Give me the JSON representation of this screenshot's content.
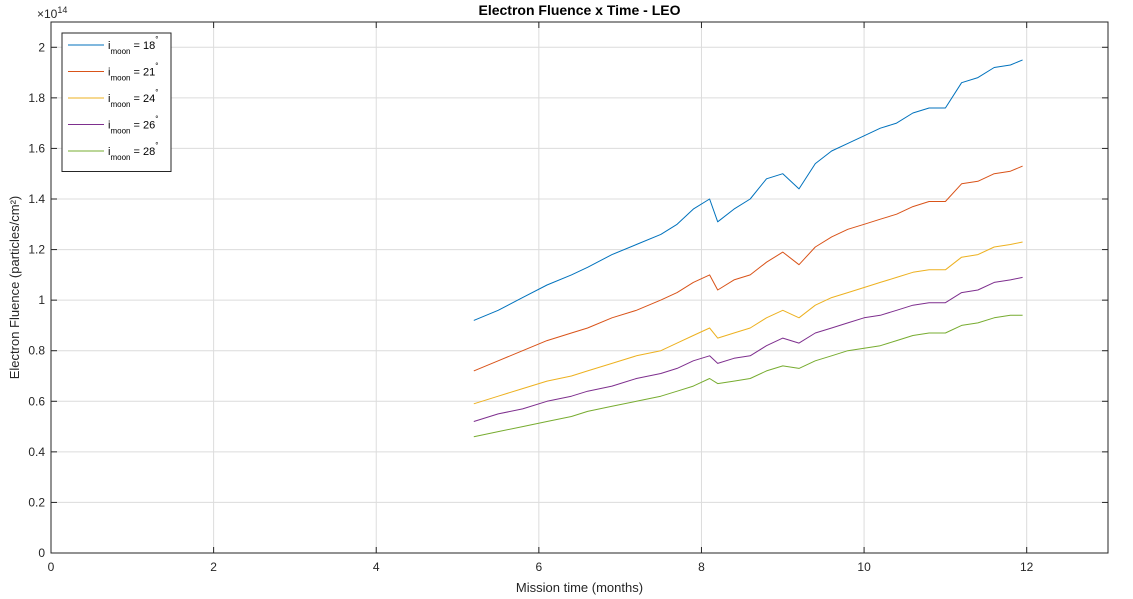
{
  "chart_data": {
    "type": "line",
    "title": "Electron Fluence x Time - LEO",
    "xlabel": "Mission time (months)",
    "ylabel": "Electron Fluence (particles/cm²)",
    "exponent_label": "×10",
    "exponent_power": "14",
    "xlim": [
      0,
      13
    ],
    "ylim": [
      0,
      2.1
    ],
    "xticks": [
      0,
      2,
      4,
      6,
      8,
      10,
      12
    ],
    "yticks": [
      0,
      0.2,
      0.4,
      0.6,
      0.8,
      1,
      1.2,
      1.4,
      1.6,
      1.8,
      2
    ],
    "ytick_labels": [
      "0",
      "0.2",
      "0.4",
      "0.6",
      "0.8",
      "1",
      "1.2",
      "1.4",
      "1.6",
      "1.8",
      "2"
    ],
    "grid": true,
    "legend_position": "top-left",
    "series": [
      {
        "label_base": "i",
        "label_sub": "moon",
        "label_value": " = 18",
        "label_sup": "°",
        "color": "#0072BD",
        "x": [
          5.2,
          5.5,
          5.8,
          6.1,
          6.4,
          6.6,
          6.9,
          7.2,
          7.5,
          7.7,
          7.9,
          8.1,
          8.2,
          8.4,
          8.6,
          8.8,
          9.0,
          9.2,
          9.4,
          9.6,
          9.8,
          10.0,
          10.2,
          10.4,
          10.6,
          10.8,
          11.0,
          11.2,
          11.4,
          11.6,
          11.8,
          11.95
        ],
        "y": [
          0.92,
          0.96,
          1.01,
          1.06,
          1.1,
          1.13,
          1.18,
          1.22,
          1.26,
          1.3,
          1.36,
          1.4,
          1.31,
          1.36,
          1.4,
          1.48,
          1.5,
          1.44,
          1.54,
          1.59,
          1.62,
          1.65,
          1.68,
          1.7,
          1.74,
          1.76,
          1.76,
          1.86,
          1.88,
          1.92,
          1.93,
          1.95
        ]
      },
      {
        "label_base": "i",
        "label_sub": "moon",
        "label_value": " = 21",
        "label_sup": "°",
        "color": "#D95319",
        "x": [
          5.2,
          5.5,
          5.8,
          6.1,
          6.4,
          6.6,
          6.9,
          7.2,
          7.5,
          7.7,
          7.9,
          8.1,
          8.2,
          8.4,
          8.6,
          8.8,
          9.0,
          9.2,
          9.4,
          9.6,
          9.8,
          10.0,
          10.2,
          10.4,
          10.6,
          10.8,
          11.0,
          11.2,
          11.4,
          11.6,
          11.8,
          11.95
        ],
        "y": [
          0.72,
          0.76,
          0.8,
          0.84,
          0.87,
          0.89,
          0.93,
          0.96,
          1.0,
          1.03,
          1.07,
          1.1,
          1.04,
          1.08,
          1.1,
          1.15,
          1.19,
          1.14,
          1.21,
          1.25,
          1.28,
          1.3,
          1.32,
          1.34,
          1.37,
          1.39,
          1.39,
          1.46,
          1.47,
          1.5,
          1.51,
          1.53
        ]
      },
      {
        "label_base": "i",
        "label_sub": "moon",
        "label_value": " = 24",
        "label_sup": "°",
        "color": "#EDB120",
        "x": [
          5.2,
          5.5,
          5.8,
          6.1,
          6.4,
          6.6,
          6.9,
          7.2,
          7.5,
          7.7,
          7.9,
          8.1,
          8.2,
          8.4,
          8.6,
          8.8,
          9.0,
          9.2,
          9.4,
          9.6,
          9.8,
          10.0,
          10.2,
          10.4,
          10.6,
          10.8,
          11.0,
          11.2,
          11.4,
          11.6,
          11.8,
          11.95
        ],
        "y": [
          0.59,
          0.62,
          0.65,
          0.68,
          0.7,
          0.72,
          0.75,
          0.78,
          0.8,
          0.83,
          0.86,
          0.89,
          0.85,
          0.87,
          0.89,
          0.93,
          0.96,
          0.93,
          0.98,
          1.01,
          1.03,
          1.05,
          1.07,
          1.09,
          1.11,
          1.12,
          1.12,
          1.17,
          1.18,
          1.21,
          1.22,
          1.23
        ]
      },
      {
        "label_base": "i",
        "label_sub": "moon",
        "label_value": " = 26",
        "label_sup": "°",
        "color": "#7E2F8E",
        "x": [
          5.2,
          5.5,
          5.8,
          6.1,
          6.4,
          6.6,
          6.9,
          7.2,
          7.5,
          7.7,
          7.9,
          8.1,
          8.2,
          8.4,
          8.6,
          8.8,
          9.0,
          9.2,
          9.4,
          9.6,
          9.8,
          10.0,
          10.2,
          10.4,
          10.6,
          10.8,
          11.0,
          11.2,
          11.4,
          11.6,
          11.8,
          11.95
        ],
        "y": [
          0.52,
          0.55,
          0.57,
          0.6,
          0.62,
          0.64,
          0.66,
          0.69,
          0.71,
          0.73,
          0.76,
          0.78,
          0.75,
          0.77,
          0.78,
          0.82,
          0.85,
          0.83,
          0.87,
          0.89,
          0.91,
          0.93,
          0.94,
          0.96,
          0.98,
          0.99,
          0.99,
          1.03,
          1.04,
          1.07,
          1.08,
          1.09
        ]
      },
      {
        "label_base": "i",
        "label_sub": "moon",
        "label_value": " = 28",
        "label_sup": "°",
        "color": "#77AC30",
        "x": [
          5.2,
          5.5,
          5.8,
          6.1,
          6.4,
          6.6,
          6.9,
          7.2,
          7.5,
          7.7,
          7.9,
          8.1,
          8.2,
          8.4,
          8.6,
          8.8,
          9.0,
          9.2,
          9.4,
          9.6,
          9.8,
          10.0,
          10.2,
          10.4,
          10.6,
          10.8,
          11.0,
          11.2,
          11.4,
          11.6,
          11.8,
          11.95
        ],
        "y": [
          0.46,
          0.48,
          0.5,
          0.52,
          0.54,
          0.56,
          0.58,
          0.6,
          0.62,
          0.64,
          0.66,
          0.69,
          0.67,
          0.68,
          0.69,
          0.72,
          0.74,
          0.73,
          0.76,
          0.78,
          0.8,
          0.81,
          0.82,
          0.84,
          0.86,
          0.87,
          0.87,
          0.9,
          0.91,
          0.93,
          0.94,
          0.94
        ]
      }
    ]
  }
}
